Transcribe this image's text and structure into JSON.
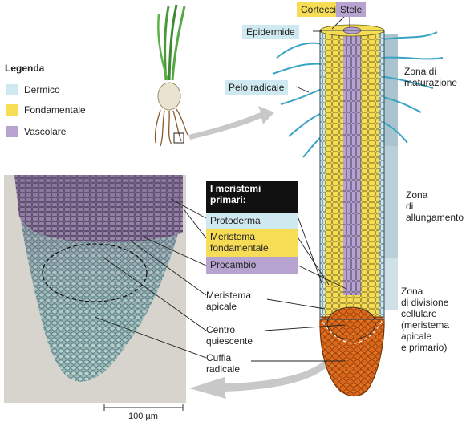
{
  "legend": {
    "title": "Legenda",
    "items": [
      {
        "label": "Dermico",
        "color": "#cfe9f0"
      },
      {
        "label": "Fondamentale",
        "color": "#f7dc55"
      },
      {
        "label": "Vascolare",
        "color": "#b7a3cf"
      }
    ]
  },
  "tissue_tags": {
    "corteccia": "Corteccia",
    "stele": "Stele",
    "epidermide": "Epidermide",
    "pelo_radicale": "Pelo radicale"
  },
  "zones": {
    "maturazione": "Zona di\nmaturazione",
    "allungamento": "Zona\ndi\nallungamento",
    "divisione": "Zona\ndi divisione\ncellulare\n(meristema\napicale\ne primario)"
  },
  "meristems": {
    "heading": "I meristemi\nprimari:",
    "protoderma": "Protoderma",
    "fondamentale": "Meristema\nfondamentale",
    "procambio": "Procambio"
  },
  "tip_labels": {
    "meristema_apicale": "Meristema\napicale",
    "centro_quiescente": "Centro\nquiescente",
    "cuffia_radicale": "Cuffia\nradicale"
  },
  "scale_bar": "100 µm",
  "colors": {
    "dermal": "#cfe9f0",
    "ground": "#f7dc55",
    "vascular": "#b7a3cf",
    "cap": "#e8731f",
    "zone_band": "#a9c4cf",
    "arrow": "#c8c8c8"
  }
}
